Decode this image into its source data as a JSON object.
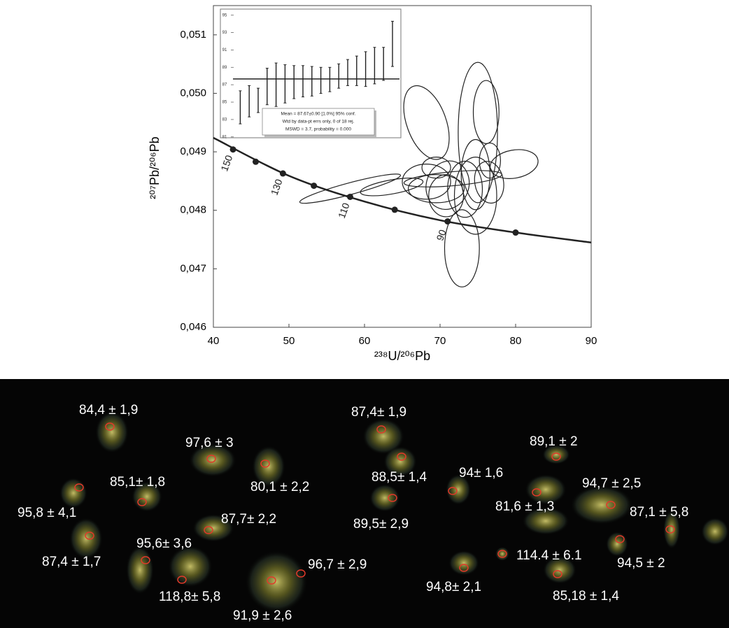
{
  "chart_data": [
    {
      "type": "concordia",
      "x_label": "²³⁸U/²⁰⁶Pb",
      "y_label": "²⁰⁷Pb/²⁰⁶Pb",
      "xlim": [
        40,
        90
      ],
      "ylim": [
        0.046,
        0.0515
      ],
      "xticks": [
        40,
        50,
        60,
        70,
        80,
        90
      ],
      "yticks": [
        {
          "value": 0.046,
          "label": "0,046"
        },
        {
          "value": 0.047,
          "label": "0,047"
        },
        {
          "value": 0.048,
          "label": "0,048"
        },
        {
          "value": 0.049,
          "label": "0,049"
        },
        {
          "value": 0.05,
          "label": "0,050"
        },
        {
          "value": 0.051,
          "label": "0,051"
        }
      ],
      "curve": {
        "x": [
          40,
          50,
          60,
          70,
          80,
          90
        ],
        "y": [
          0.04924,
          0.04859,
          0.04815,
          0.04783,
          0.04762,
          0.04745
        ]
      },
      "markers": {
        "x": [
          42.6,
          45.6,
          49.2,
          53.3,
          58.1,
          64.0,
          71.0,
          80.0
        ],
        "y": [
          0.04904,
          0.04883,
          0.04863,
          0.04842,
          0.04823,
          0.04801,
          0.04781,
          0.04762
        ],
        "labels": [
          150,
          null,
          130,
          null,
          110,
          null,
          90,
          null
        ]
      },
      "ellipses": {
        "cx": [
          75.0,
          72.9,
          68.2,
          79.8,
          58.1,
          63.6,
          68.2,
          71.0,
          73.3,
          74.7,
          76.5,
          71.7,
          70.8,
          69.5,
          74.7,
          76.6,
          76.1,
          69.5
        ],
        "cy": [
          0.04933,
          0.04735,
          0.0495,
          0.04879,
          0.04837,
          0.0484,
          0.04849,
          0.04843,
          0.04836,
          0.04861,
          0.04848,
          0.04854,
          0.04825,
          0.04837,
          0.04825,
          0.04885,
          0.04968,
          0.04873
        ],
        "rx": [
          2.6,
          2.3,
          2.6,
          3.2,
          6.9,
          4.2,
          3.2,
          2.8,
          2.3,
          1.9,
          1.9,
          6.5,
          2.3,
          3.7,
          2.8,
          1.4,
          1.7,
          1.9
        ],
        "ry": [
          0.0012,
          0.00066,
          0.00066,
          0.00024,
          0.0001,
          0.00012,
          0.0003,
          0.00042,
          0.00048,
          0.0006,
          0.00036,
          0.00012,
          0.00036,
          0.00024,
          0.00066,
          0.0003,
          0.00054,
          0.00018
        ],
        "angle": [
          0,
          0,
          -20,
          -10,
          -15,
          -10,
          0,
          20,
          0,
          0,
          -10,
          -5,
          0,
          0,
          0,
          0,
          0,
          0
        ]
      },
      "color": "#222222"
    },
    {
      "type": "errorbar",
      "ylim": [
        80.9,
        95.7
      ],
      "yticks": [
        81,
        83,
        85,
        87,
        89,
        91,
        93,
        95
      ],
      "values": [
        84.4,
        85.1,
        85.2,
        86.8,
        87.0,
        87.1,
        87.3,
        87.4,
        87.4,
        87.5,
        87.6,
        88.0,
        88.4,
        88.6,
        88.8,
        89.2,
        89.4,
        91.7
      ],
      "errors": [
        1.9,
        1.8,
        1.4,
        2.1,
        2.5,
        2.2,
        1.9,
        1.8,
        1.7,
        1.5,
        1.4,
        1.4,
        1.5,
        1.7,
        2.0,
        2.1,
        1.9,
        2.6
      ],
      "mean": 87.67,
      "stats": [
        "Mean = 87.67±0.90  [1.0%]  95% conf.",
        "Wtd by data-pt errs only, 0 of 18 rej.",
        "MSWD = 3.7, probability = 0.000"
      ],
      "color": "#222222"
    }
  ],
  "cl_image": {
    "labels": [
      "84,4 ± 1,9",
      "97,6 ± 3",
      "85,1± 1,8",
      "80,1 ± 2,2",
      "95,8 ± 4,1",
      "87,7± 2,2",
      "87,4 ± 1,7",
      "95,6± 3,6",
      "118,8± 5,8",
      "96,7 ± 2,9",
      "91,9 ± 2,6",
      "87,4± 1,9",
      "88,5± 1,4",
      "89,5± 2,9",
      "94± 1,6",
      "89,1 ± 2",
      "94,7 ± 2,5",
      "81,6 ± 1,3",
      "87,1 ± 5,8",
      "114.4 ± 6.1",
      "94,5 ± 2",
      "94,8± 2,1",
      "85,18 ± 1,4"
    ]
  }
}
